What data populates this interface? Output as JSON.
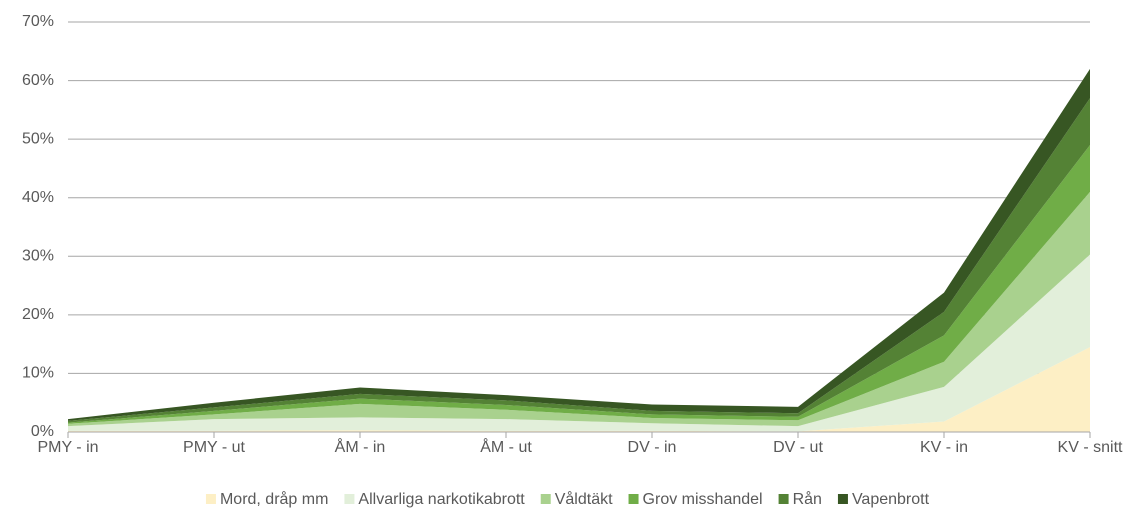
{
  "chart_data": {
    "type": "stacked_area",
    "categories": [
      "PMY - in",
      "PMY - ut",
      "ÅM - in",
      "ÅM - ut",
      "DV - in",
      "DV - ut",
      "KV - in",
      "KV - snitt"
    ],
    "series": [
      {
        "name": "Mord, dråp mm",
        "color": "#fdefc5",
        "values": [
          0.2,
          0.2,
          0.3,
          0.2,
          0.2,
          0.1,
          1.8,
          14.5
        ]
      },
      {
        "name": "Allvarliga narkotikabrott",
        "color": "#e2efda",
        "values": [
          0.8,
          2.0,
          2.2,
          2.0,
          1.3,
          0.9,
          5.9,
          15.8
        ]
      },
      {
        "name": "Våldtäkt",
        "color": "#a9d18e",
        "values": [
          0.4,
          0.8,
          2.3,
          1.6,
          0.9,
          1.0,
          4.3,
          10.7
        ]
      },
      {
        "name": "Grov misshandel",
        "color": "#70ad47",
        "values": [
          0.2,
          0.6,
          0.9,
          0.8,
          0.6,
          0.6,
          4.5,
          8.0
        ]
      },
      {
        "name": "Rån",
        "color": "#548235",
        "values": [
          0.3,
          0.6,
          0.8,
          0.8,
          0.6,
          0.6,
          4.0,
          8.0
        ]
      },
      {
        "name": "Vapenbrott",
        "color": "#375623",
        "values": [
          0.3,
          0.8,
          1.1,
          0.9,
          1.1,
          1.1,
          3.3,
          5.0
        ]
      }
    ],
    "ylim": [
      0,
      70
    ],
    "yticks": [
      {
        "value": 0,
        "label": "0%"
      },
      {
        "value": 10,
        "label": "10%"
      },
      {
        "value": 20,
        "label": "20%"
      },
      {
        "value": 30,
        "label": "30%"
      },
      {
        "value": 40,
        "label": "40%"
      },
      {
        "value": 50,
        "label": "50%"
      },
      {
        "value": 60,
        "label": "60%"
      },
      {
        "value": 70,
        "label": "70%"
      }
    ],
    "grid": true,
    "legend": "bottom"
  }
}
